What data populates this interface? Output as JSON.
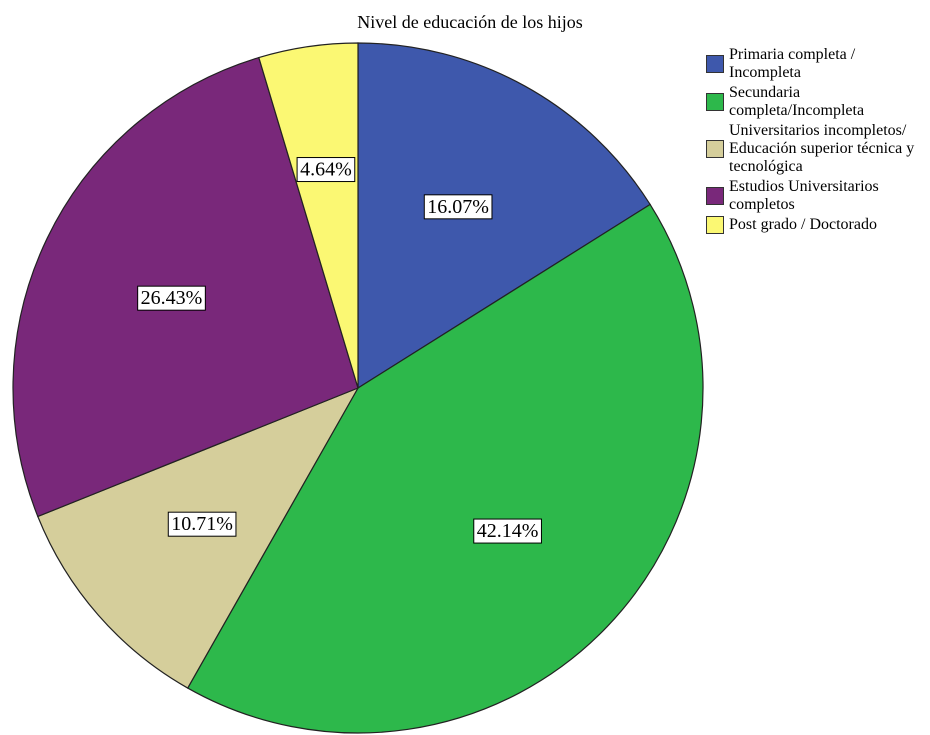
{
  "chart_data": {
    "type": "pie",
    "title": "Nivel de educación de los hijos",
    "categories": [
      "Primaria completa / Incompleta",
      "Secundaria completa/Incompleta",
      "Universitarios incompletos/ Educación superior técnica y tecnológica",
      "Estudios Universitarios completos",
      "Post grado / Doctorado"
    ],
    "values": [
      16.07,
      42.14,
      10.71,
      26.43,
      4.64
    ],
    "value_labels": [
      "16.07%",
      "42.14%",
      "10.71%",
      "26.43%",
      "4.64%"
    ],
    "colors": [
      "#3e58ac",
      "#2db84b",
      "#d5ce9b",
      "#79287a",
      "#fbf873"
    ],
    "legend": "right"
  }
}
